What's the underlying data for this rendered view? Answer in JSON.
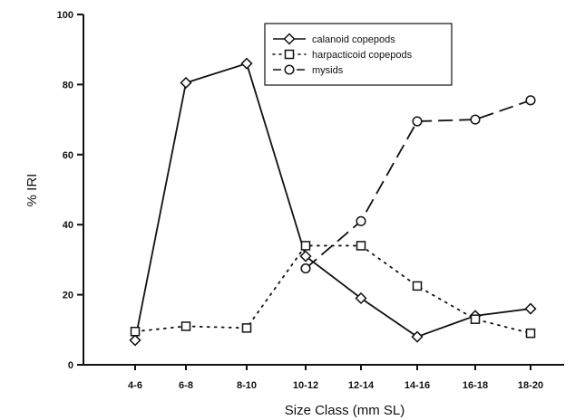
{
  "chart_data": {
    "type": "line",
    "xlabel": "Size Class (mm SL)",
    "ylabel": "% IRI",
    "ylim": [
      0,
      100
    ],
    "yticks": [
      0,
      20,
      40,
      60,
      80,
      100
    ],
    "categories": [
      "4-6",
      "6-8",
      "8-10",
      "10-12",
      "12-14",
      "14-16",
      "16-18",
      "18-20"
    ],
    "grid": false,
    "legend_position": "top-center",
    "series": [
      {
        "name": "calanoid copepods",
        "marker": "diamond",
        "dash": "solid",
        "values": [
          7,
          80.5,
          86,
          31,
          19,
          8,
          14,
          16
        ]
      },
      {
        "name": "harpacticoid copepods",
        "marker": "square",
        "dash": "dotted",
        "values": [
          9.5,
          11,
          10.5,
          34,
          34,
          22.5,
          13,
          9
        ]
      },
      {
        "name": "mysids",
        "marker": "circle",
        "dash": "dashed",
        "values": [
          null,
          null,
          null,
          27.5,
          41,
          69.5,
          70,
          75.5
        ]
      }
    ]
  }
}
